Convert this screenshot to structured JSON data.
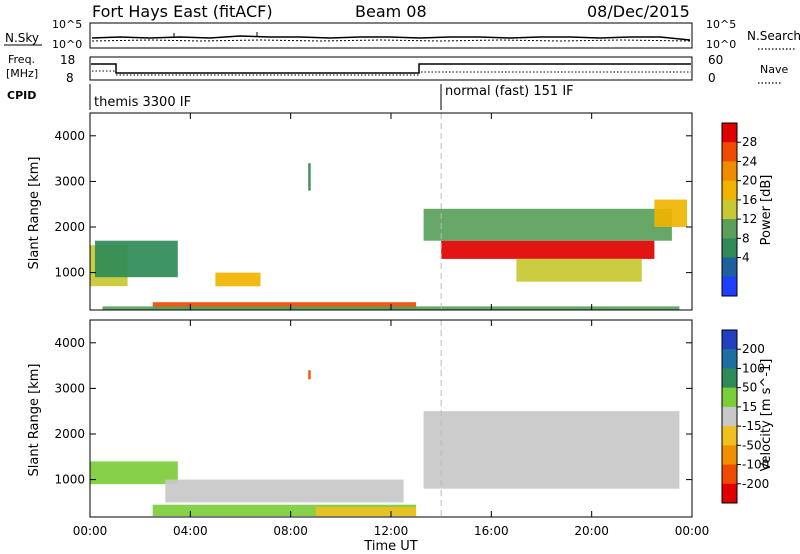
{
  "header": {
    "station": "Fort Hays East (fitACF)",
    "beam": "Beam 08",
    "date": "08/Dec/2015"
  },
  "side_labels": {
    "nsky": "N.Sky",
    "nsearch": "N.Search",
    "freq_line1": "Freq.",
    "freq_line2": "[MHz]",
    "nave": "Nave",
    "cpid": "CPID"
  },
  "noise_panel": {
    "left_ticks": [
      "10^5",
      "10^0"
    ],
    "right_ticks": [
      "10^5",
      "10^0"
    ]
  },
  "freq_panel": {
    "left_ticks": [
      "18",
      "8"
    ],
    "right_ticks": [
      "60",
      "0"
    ]
  },
  "cpid_panel": {
    "modes": [
      {
        "label": "themis 3300 IF",
        "start_hour": 0,
        "end_hour": 14
      },
      {
        "label": "normal (fast) 151 IF",
        "start_hour": 14,
        "end_hour": 24
      }
    ]
  },
  "x_axis": {
    "title": "Time UT",
    "ticks": [
      "00:00",
      "04:00",
      "08:00",
      "12:00",
      "16:00",
      "20:00",
      "00:00"
    ]
  },
  "y_axis": {
    "title": "Slant Range [km]",
    "ticks": [
      "1000",
      "2000",
      "3000",
      "4000"
    ]
  },
  "power_colorbar": {
    "label": "Power [dB]",
    "ticks": [
      "4",
      "8",
      "12",
      "16",
      "20",
      "24",
      "28"
    ],
    "colors": [
      "#1f3fff",
      "#1e5fa0",
      "#2e8b57",
      "#5aa05a",
      "#c8c832",
      "#f0b400",
      "#f08c00",
      "#f04a00",
      "#e10000"
    ]
  },
  "velocity_colorbar": {
    "label": "Velocity [m s^-1]",
    "ticks": [
      "200",
      "100",
      "50",
      "15",
      "-15",
      "-50",
      "-100",
      "-200"
    ],
    "colors": [
      "#2040c0",
      "#1e6fa0",
      "#2e8b57",
      "#7ccd3a",
      "#c8c8c8",
      "#f0c020",
      "#f09000",
      "#f04a00",
      "#e10000"
    ]
  },
  "chart_data": {
    "type": "heatmap",
    "title": "Fort Hays East (fitACF) Beam 08 08/Dec/2015",
    "xlabel": "Time UT",
    "ylabel": "Slant Range [km]",
    "xlim_hours": [
      0,
      24
    ],
    "ylim_km": [
      180,
      4500
    ],
    "mode_change_hour": 14,
    "panels": [
      {
        "name": "Power [dB]",
        "colorbar_range": [
          0,
          30
        ],
        "regions": [
          {
            "t0": 0.0,
            "t1": 1.5,
            "r0": 700,
            "r1": 1600,
            "value": 14
          },
          {
            "t0": 0.2,
            "t1": 3.5,
            "r0": 900,
            "r1": 1700,
            "value": 9
          },
          {
            "t0": 2.5,
            "t1": 13.0,
            "r0": 200,
            "r1": 350,
            "value": 26
          },
          {
            "t0": 0.5,
            "t1": 23.5,
            "r0": 180,
            "r1": 260,
            "value": 10
          },
          {
            "t0": 5.0,
            "t1": 6.8,
            "r0": 700,
            "r1": 1000,
            "value": 18
          },
          {
            "t0": 8.7,
            "t1": 8.8,
            "r0": 2800,
            "r1": 3400,
            "value": 7
          },
          {
            "t0": 14.0,
            "t1": 22.5,
            "r0": 1300,
            "r1": 1700,
            "value": 27
          },
          {
            "t0": 13.3,
            "t1": 23.2,
            "r0": 1700,
            "r1": 2400,
            "value": 12
          },
          {
            "t0": 17.0,
            "t1": 22.0,
            "r0": 800,
            "r1": 1300,
            "value": 15
          },
          {
            "t0": 22.5,
            "t1": 23.8,
            "r0": 2000,
            "r1": 2600,
            "value": 17
          }
        ]
      },
      {
        "name": "Velocity [m s^-1]",
        "colorbar_range": [
          -200,
          200
        ],
        "regions": [
          {
            "t0": 0.0,
            "t1": 3.5,
            "r0": 900,
            "r1": 1400,
            "value": 60
          },
          {
            "t0": 2.5,
            "t1": 13.0,
            "r0": 200,
            "r1": 450,
            "value": 40
          },
          {
            "t0": 3.0,
            "t1": 12.5,
            "r0": 500,
            "r1": 1000,
            "value": 0
          },
          {
            "t0": 9.0,
            "t1": 13.0,
            "r0": 200,
            "r1": 400,
            "value": -40
          },
          {
            "t0": 8.7,
            "t1": 8.8,
            "r0": 3200,
            "r1": 3400,
            "value": -120
          },
          {
            "t0": 13.3,
            "t1": 23.5,
            "r0": 800,
            "r1": 2500,
            "value": 0
          }
        ]
      }
    ]
  }
}
